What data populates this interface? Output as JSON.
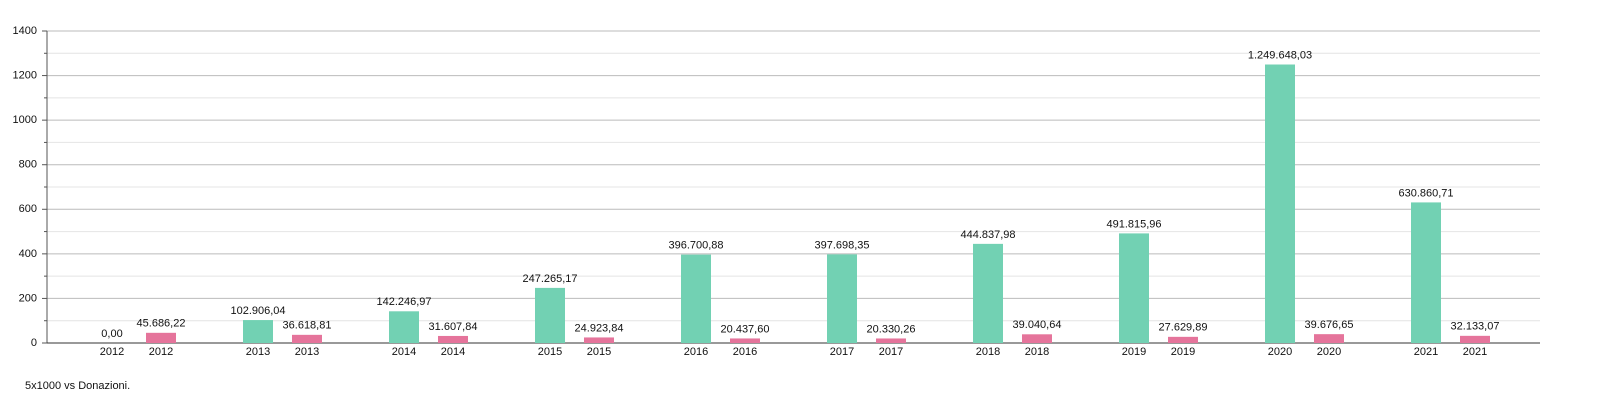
{
  "chart_data": {
    "type": "bar",
    "footer": "5x1000 vs Donazioni.",
    "categories": [
      "2012",
      "2013",
      "2014",
      "2015",
      "2016",
      "2017",
      "2018",
      "2019",
      "2020",
      "2021"
    ],
    "series": [
      {
        "color": "#72d1b3",
        "values": [
          0,
          102.90604,
          142.24697,
          247.26517,
          396.70088,
          397.69835,
          444.83798,
          491.81596,
          1249.64803,
          630.86071
        ],
        "value_labels": [
          "0,00",
          "102.906,04",
          "142.246,97",
          "247.265,17",
          "396.700,88",
          "397.698,35",
          "444.837,98",
          "491.815,96",
          "1.249.648,03",
          "630.860,71"
        ]
      },
      {
        "color": "#e5749b",
        "values": [
          45.68622,
          36.61881,
          31.60784,
          24.92384,
          20.4376,
          20.33026,
          39.04064,
          27.62989,
          39.67665,
          32.13307
        ],
        "value_labels": [
          "45.686,22",
          "36.618,81",
          "31.607,84",
          "24.923,84",
          "20.437,60",
          "20.330,26",
          "39.040,64",
          "27.629,89",
          "39.676,65",
          "32.133,07"
        ]
      }
    ],
    "ylim": [
      0,
      1400
    ],
    "yticks": [
      0,
      200,
      400,
      600,
      800,
      1000,
      1200,
      1400
    ],
    "minor_yticks": [
      100,
      300,
      500,
      700,
      900,
      1100,
      1300
    ],
    "grid": true
  }
}
